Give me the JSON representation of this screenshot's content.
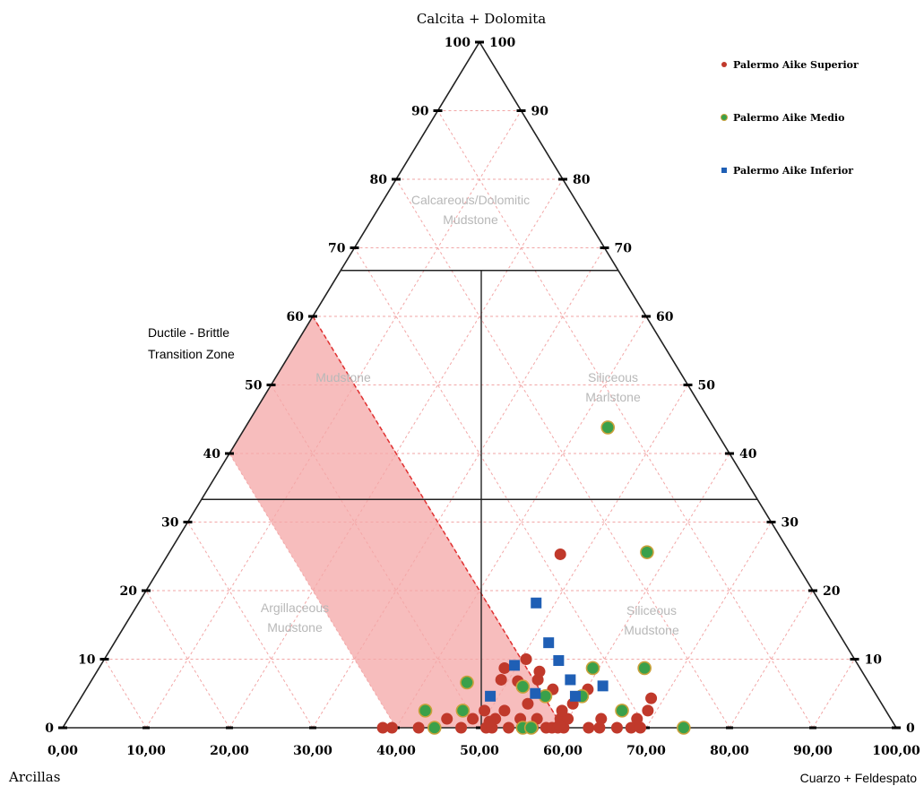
{
  "chart_data": {
    "type": "scatter",
    "subtype": "ternary",
    "axes": {
      "top": "Calcita + Dolomita",
      "left": "Arcillas",
      "right": "Cuarzo + Feldespato"
    },
    "bottom_ticks": [
      "0,00",
      "10,00",
      "20,00",
      "30,00",
      "40,00",
      "50,00",
      "60,00",
      "70,00",
      "80,00",
      "90,00",
      "100,00"
    ],
    "left_ticks": [
      "0",
      "10",
      "20",
      "30",
      "40",
      "50",
      "60",
      "70",
      "80",
      "90",
      "100"
    ],
    "right_ticks": [
      "0",
      "10",
      "20",
      "30",
      "40",
      "50",
      "60",
      "70",
      "80",
      "90",
      "100"
    ],
    "grid": true,
    "legend_position": "top-right",
    "zones": [
      {
        "label": "Calcareous/Dolomitic Mudstone",
        "lines": [
          "Calcareous/Dolomitic",
          "Mudstone"
        ]
      },
      {
        "label": "Mudstone",
        "lines": [
          "Mudstone"
        ]
      },
      {
        "label": "Siliceous Marlstone",
        "lines": [
          "Siliceous",
          "Marlstone"
        ]
      },
      {
        "label": "Argillaceous Mudstone",
        "lines": [
          "Argillaceous",
          "Mudstone"
        ]
      },
      {
        "label": "Siliceous Mudstone",
        "lines": [
          "Siliceous",
          "Mudstone"
        ]
      }
    ],
    "ductile_brittle_zone": {
      "label_lines": [
        "Ductile - Brittle",
        "Transition Zone"
      ],
      "color": "#f4a7a7"
    },
    "series": [
      {
        "name": "Palermo Aike Superior",
        "marker": "circle",
        "color": "#c0392b",
        "points": [
          [
            38.4,
            0
          ],
          [
            39.5,
            0
          ],
          [
            42.7,
            0
          ],
          [
            44.5,
            0
          ],
          [
            47.8,
            0
          ],
          [
            50.8,
            0
          ],
          [
            51.5,
            0
          ],
          [
            53.5,
            0
          ],
          [
            55.2,
            0
          ],
          [
            56.4,
            0
          ],
          [
            58.0,
            0
          ],
          [
            58.7,
            0
          ],
          [
            59.4,
            0
          ],
          [
            60.1,
            0
          ],
          [
            63.1,
            0
          ],
          [
            64.4,
            0
          ],
          [
            66.5,
            0
          ],
          [
            68.2,
            0
          ],
          [
            69.3,
            0
          ],
          [
            46.1,
            1.3
          ],
          [
            49.2,
            1.3
          ],
          [
            51.9,
            1.3
          ],
          [
            54.9,
            1.3
          ],
          [
            56.9,
            1.3
          ],
          [
            59.7,
            1.3
          ],
          [
            60.6,
            1.3
          ],
          [
            64.6,
            1.3
          ],
          [
            68.9,
            1.3
          ],
          [
            50.6,
            2.5
          ],
          [
            53.0,
            2.5
          ],
          [
            59.9,
            2.5
          ],
          [
            70.2,
            2.5
          ],
          [
            55.8,
            3.5
          ],
          [
            61.2,
            3.5
          ],
          [
            70.6,
            4.3
          ],
          [
            58.8,
            5.6
          ],
          [
            63.0,
            5.6
          ],
          [
            53.0,
            8.7
          ],
          [
            57.0,
            7.0
          ],
          [
            54.6,
            6.8
          ],
          [
            52.6,
            7.0
          ],
          [
            57.2,
            8.2
          ],
          [
            51.2,
            0.9
          ],
          [
            59.6,
            0.4
          ],
          [
            55.6,
            10.0
          ],
          [
            59.7,
            25.3
          ]
        ]
      },
      {
        "name": "Palermo Aike Medio",
        "marker": "circle",
        "color": "#3aa04a",
        "points": [
          [
            44.6,
            0
          ],
          [
            55.2,
            0
          ],
          [
            56.2,
            0
          ],
          [
            74.5,
            0
          ],
          [
            43.5,
            2.5
          ],
          [
            67.1,
            2.5
          ],
          [
            57.9,
            4.6
          ],
          [
            62.3,
            4.6
          ],
          [
            48.5,
            6.6
          ],
          [
            55.2,
            6.0
          ],
          [
            63.6,
            8.7
          ],
          [
            69.8,
            8.7
          ],
          [
            48.0,
            2.5
          ],
          [
            70.1,
            25.6
          ],
          [
            65.4,
            43.8
          ]
        ]
      },
      {
        "name": "Palermo Aike Inferior",
        "marker": "square",
        "color": "#1f5fb5",
        "points": [
          [
            51.3,
            4.6
          ],
          [
            56.7,
            5.0
          ],
          [
            61.5,
            4.6
          ],
          [
            64.8,
            6.1
          ],
          [
            60.9,
            7.0
          ],
          [
            54.2,
            9.1
          ],
          [
            59.5,
            9.8
          ],
          [
            58.3,
            12.4
          ],
          [
            56.8,
            18.2
          ]
        ]
      }
    ]
  }
}
